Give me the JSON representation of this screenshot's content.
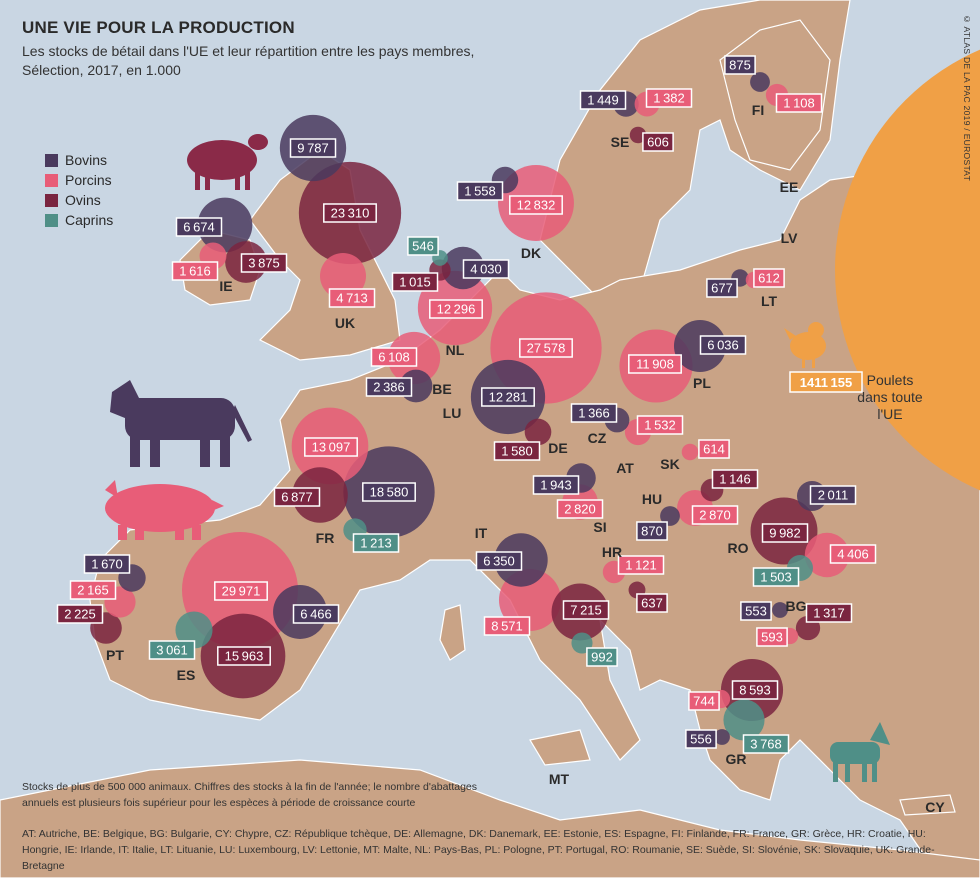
{
  "title": "UNE VIE POUR LA PRODUCTION",
  "subtitle": "Les stocks de bétail dans l'UE et leur répartition entre les pays membres, Sélection, 2017, en 1.000",
  "credit": "© ATLAS DE LA PAC 2019 / EUROSTAT",
  "legend": [
    {
      "key": "bovins",
      "label": "Bovins",
      "color": "#4a3a5e"
    },
    {
      "key": "porcins",
      "label": "Porcins",
      "color": "#e85d78"
    },
    {
      "key": "ovins",
      "label": "Ovins",
      "color": "#7a2540"
    },
    {
      "key": "caprins",
      "label": "Caprins",
      "color": "#4f8f87"
    }
  ],
  "chicken": {
    "value": "1411155",
    "label": "Poulets dans toute l'UE"
  },
  "note": "Stocks de plus de 500 000 animaux. Chiffres des stocks à la fin de l'année; le nombre d'abattages annuels est plusieurs fois supérieur pour les espèces à période de croissance courte",
  "abbreviations": "AT: Autriche, BE: Belgique, BG: Bulgarie, CY: Chypre, CZ: République tchèque, DE: Allemagne, DK: Danemark, EE: Estonie, ES: Espagne, FI: Finlande, FR: France, GR: Grèce, HR: Croatie, HU: Hongrie, IE: Irlande, IT: Italie, LT: Lituanie, LU: Luxembourg, LV: Lettonie, MT: Malte, NL: Pays-Bas, PL: Pologne, PT: Portugal, RO: Roumanie, SE: Suède, SI: Slovénie, SK: Slovaquie, UK: Grande-Bretagne",
  "countries": [
    "UK",
    "IE",
    "NL",
    "BE",
    "LU",
    "DK",
    "DE",
    "FR",
    "ES",
    "PT",
    "IT",
    "MT",
    "AT",
    "CZ",
    "SK",
    "PL",
    "HU",
    "SI",
    "HR",
    "RO",
    "BG",
    "GR",
    "CY",
    "SE",
    "FI",
    "EE",
    "LV",
    "LT"
  ],
  "stocks": [
    {
      "country": "UK",
      "type": "ovins",
      "value": 23310
    },
    {
      "country": "UK",
      "type": "bovins",
      "value": 9787
    },
    {
      "country": "UK",
      "type": "porcins",
      "value": 4713
    },
    {
      "country": "IE",
      "type": "bovins",
      "value": 6674
    },
    {
      "country": "IE",
      "type": "ovins",
      "value": 3875
    },
    {
      "country": "IE",
      "type": "porcins",
      "value": 1616
    },
    {
      "country": "DK",
      "type": "porcins",
      "value": 12832
    },
    {
      "country": "DK",
      "type": "bovins",
      "value": 1558
    },
    {
      "country": "NL",
      "type": "porcins",
      "value": 12296
    },
    {
      "country": "NL",
      "type": "bovins",
      "value": 4030
    },
    {
      "country": "NL",
      "type": "ovins",
      "value": 1015
    },
    {
      "country": "NL",
      "type": "caprins",
      "value": 546
    },
    {
      "country": "BE",
      "type": "porcins",
      "value": 6108
    },
    {
      "country": "BE",
      "type": "bovins",
      "value": 2386
    },
    {
      "country": "DE",
      "type": "porcins",
      "value": 27578
    },
    {
      "country": "DE",
      "type": "bovins",
      "value": 12281
    },
    {
      "country": "DE",
      "type": "ovins",
      "value": 1580
    },
    {
      "country": "FR",
      "type": "bovins",
      "value": 18580
    },
    {
      "country": "FR",
      "type": "porcins",
      "value": 13097
    },
    {
      "country": "FR",
      "type": "ovins",
      "value": 6877
    },
    {
      "country": "FR",
      "type": "caprins",
      "value": 1213
    },
    {
      "country": "ES",
      "type": "porcins",
      "value": 29971
    },
    {
      "country": "ES",
      "type": "ovins",
      "value": 15963
    },
    {
      "country": "ES",
      "type": "bovins",
      "value": 6466
    },
    {
      "country": "ES",
      "type": "caprins",
      "value": 3061
    },
    {
      "country": "PT",
      "type": "ovins",
      "value": 2225
    },
    {
      "country": "PT",
      "type": "porcins",
      "value": 2165
    },
    {
      "country": "PT",
      "type": "bovins",
      "value": 1670
    },
    {
      "country": "IT",
      "type": "porcins",
      "value": 8571
    },
    {
      "country": "IT",
      "type": "ovins",
      "value": 7215
    },
    {
      "country": "IT",
      "type": "bovins",
      "value": 6350
    },
    {
      "country": "IT",
      "type": "caprins",
      "value": 992
    },
    {
      "country": "AT",
      "type": "porcins",
      "value": 2820
    },
    {
      "country": "AT",
      "type": "bovins",
      "value": 1943
    },
    {
      "country": "CZ",
      "type": "porcins",
      "value": 1532
    },
    {
      "country": "CZ",
      "type": "bovins",
      "value": 1366
    },
    {
      "country": "SK",
      "type": "porcins",
      "value": 614
    },
    {
      "country": "PL",
      "type": "porcins",
      "value": 11908
    },
    {
      "country": "PL",
      "type": "bovins",
      "value": 6036
    },
    {
      "country": "HU",
      "type": "porcins",
      "value": 2870
    },
    {
      "country": "HU",
      "type": "ovins",
      "value": 1146
    },
    {
      "country": "HU",
      "type": "bovins",
      "value": 870
    },
    {
      "country": "HR",
      "type": "porcins",
      "value": 1121
    },
    {
      "country": "HR",
      "type": "ovins",
      "value": 637
    },
    {
      "country": "RO",
      "type": "ovins",
      "value": 9982
    },
    {
      "country": "RO",
      "type": "porcins",
      "value": 4406
    },
    {
      "country": "RO",
      "type": "bovins",
      "value": 2011
    },
    {
      "country": "RO",
      "type": "caprins",
      "value": 1503
    },
    {
      "country": "BG",
      "type": "ovins",
      "value": 1317
    },
    {
      "country": "BG",
      "type": "porcins",
      "value": 593
    },
    {
      "country": "BG",
      "type": "bovins",
      "value": 553
    },
    {
      "country": "GR",
      "type": "ovins",
      "value": 8593
    },
    {
      "country": "GR",
      "type": "caprins",
      "value": 3768
    },
    {
      "country": "GR",
      "type": "porcins",
      "value": 744
    },
    {
      "country": "GR",
      "type": "bovins",
      "value": 556
    },
    {
      "country": "SE",
      "type": "bovins",
      "value": 1449
    },
    {
      "country": "SE",
      "type": "porcins",
      "value": 1382
    },
    {
      "country": "SE",
      "type": "ovins",
      "value": 606
    },
    {
      "country": "FI",
      "type": "bovins",
      "value": 875
    },
    {
      "country": "FI",
      "type": "porcins",
      "value": 1108
    },
    {
      "country": "LT",
      "type": "porcins",
      "value": 612
    },
    {
      "country": "LT",
      "type": "bovins",
      "value": 677
    }
  ]
}
